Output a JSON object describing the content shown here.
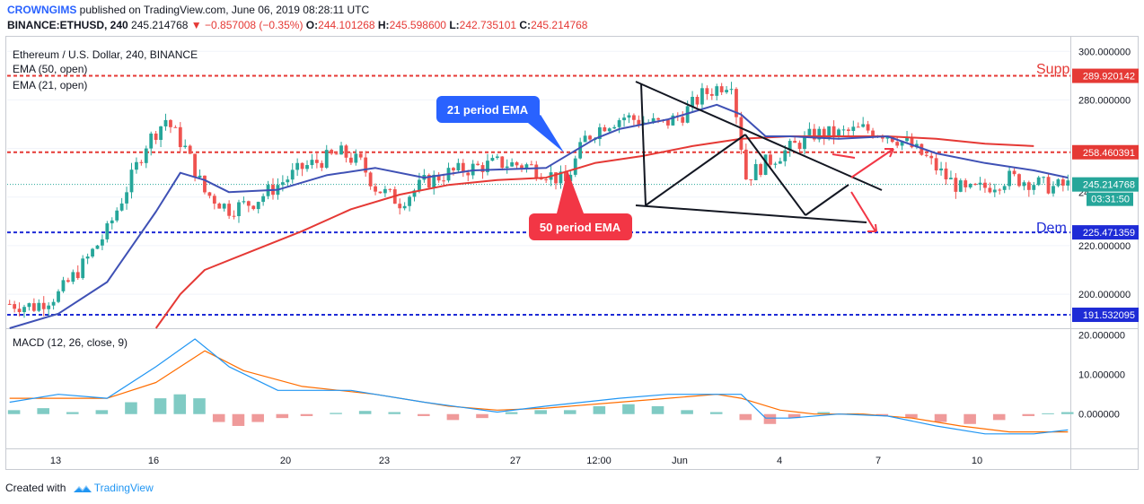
{
  "header": {
    "publisher": "CROWNGIMS",
    "published_text": "published on TradingView.com, June 06, 2019 08:28:11 UTC",
    "symbol": "BINANCE:ETHUSD, 240",
    "last_price": "245.214768",
    "change": "−0.857008 (−0.35%)",
    "open_label": "O:",
    "open": "244.101268",
    "high_label": "H:",
    "high": "245.598600",
    "low_label": "L:",
    "low": "242.735101",
    "close_label": "C:",
    "close": "245.214768"
  },
  "legend": {
    "title": "Ethereum / U.S. Dollar, 240, BINANCE",
    "ema50": "EMA (50, open)",
    "ema21": "EMA (21, open)",
    "macd": "MACD (12, 26, close, 9)"
  },
  "annotations": {
    "ema21_callout": "21 period EMA",
    "ema50_callout": "50 period EMA",
    "supply": "Supp",
    "demand": "Dem"
  },
  "price_axis": {
    "ticks": [
      "300.000000",
      "280.000000",
      "220.000000",
      "200.000000"
    ],
    "partial_tick": "24",
    "level_labels": [
      "289.920142",
      "258.460391",
      "225.471359",
      "191.532095"
    ],
    "current_price": "245.214768",
    "countdown": "03:31:50"
  },
  "macd_axis": {
    "ticks": [
      "20.000000",
      "10.000000",
      "0.000000"
    ]
  },
  "time_axis": {
    "ticks": [
      "13",
      "16",
      "20",
      "23",
      "27",
      "12:00",
      "Jun",
      "4",
      "7",
      "10"
    ]
  },
  "colors": {
    "up": "#26a69a",
    "down": "#ef5350",
    "ema21": "#3f51b5",
    "ema50": "#e53935",
    "macd_line": "#2196f3",
    "signal_line": "#ff6d00",
    "supply_line": "#e53935",
    "demand_line": "#1e2bd6",
    "callout_blue": "#2962ff",
    "callout_red": "#f23645"
  },
  "footer": {
    "created_with": "Created with",
    "brand": "TradingView"
  },
  "chart_data": {
    "type": "candlestick",
    "title": "Ethereum / U.S. Dollar, 240, BINANCE",
    "x": [
      "13",
      "16",
      "20",
      "23",
      "27",
      "12:00",
      "Jun",
      "4"
    ],
    "ylim": [
      186,
      306
    ],
    "horizontal_levels": [
      {
        "value": 289.920142,
        "style": "dashed",
        "color": "#e53935"
      },
      {
        "value": 258.460391,
        "style": "dashed",
        "color": "#e53935"
      },
      {
        "value": 225.471359,
        "style": "dashed",
        "color": "#1e2bd6"
      },
      {
        "value": 191.532095,
        "style": "dashed",
        "color": "#1e2bd6"
      }
    ],
    "close_path": [
      [
        0,
        196
      ],
      [
        5,
        195
      ],
      [
        10,
        200
      ],
      [
        15,
        212
      ],
      [
        20,
        226
      ],
      [
        25,
        248
      ],
      [
        28,
        262
      ],
      [
        32,
        272
      ],
      [
        36,
        260
      ],
      [
        40,
        242
      ],
      [
        45,
        235
      ],
      [
        50,
        238
      ],
      [
        55,
        245
      ],
      [
        60,
        252
      ],
      [
        65,
        256
      ],
      [
        68,
        258
      ],
      [
        72,
        254
      ],
      [
        75,
        244
      ],
      [
        80,
        238
      ],
      [
        85,
        246
      ],
      [
        90,
        250
      ],
      [
        95,
        252
      ],
      [
        100,
        254
      ],
      [
        106,
        253
      ],
      [
        110,
        250
      ],
      [
        114,
        246
      ],
      [
        118,
        264
      ],
      [
        122,
        270
      ],
      [
        126,
        273
      ],
      [
        130,
        271
      ],
      [
        134,
        270
      ],
      [
        138,
        274
      ],
      [
        142,
        282
      ],
      [
        146,
        286
      ],
      [
        148,
        288
      ],
      [
        151,
        248
      ],
      [
        155,
        254
      ],
      [
        160,
        260
      ],
      [
        165,
        266
      ],
      [
        170,
        266
      ],
      [
        175,
        268
      ],
      [
        180,
        266
      ],
      [
        184,
        262
      ],
      [
        188,
        256
      ],
      [
        192,
        248
      ],
      [
        196,
        242
      ],
      [
        200,
        244
      ],
      [
        205,
        248
      ],
      [
        210,
        246
      ],
      [
        214,
        244
      ],
      [
        217,
        245
      ]
    ],
    "ema21_path": [
      [
        0,
        186
      ],
      [
        10,
        192
      ],
      [
        20,
        205
      ],
      [
        30,
        234
      ],
      [
        35,
        250
      ],
      [
        40,
        247
      ],
      [
        45,
        242
      ],
      [
        55,
        243
      ],
      [
        65,
        249
      ],
      [
        75,
        252
      ],
      [
        85,
        248
      ],
      [
        95,
        251
      ],
      [
        110,
        252
      ],
      [
        120,
        264
      ],
      [
        125,
        268
      ],
      [
        130,
        270
      ],
      [
        135,
        272
      ],
      [
        140,
        275
      ],
      [
        145,
        278
      ],
      [
        150,
        274
      ],
      [
        155,
        265
      ],
      [
        160,
        265
      ],
      [
        170,
        264
      ],
      [
        180,
        265
      ],
      [
        190,
        258
      ],
      [
        200,
        254
      ],
      [
        210,
        251
      ],
      [
        217,
        248
      ]
    ],
    "ema50_path": [
      [
        30,
        186
      ],
      [
        35,
        200
      ],
      [
        40,
        210
      ],
      [
        50,
        218
      ],
      [
        60,
        226
      ],
      [
        70,
        235
      ],
      [
        80,
        241
      ],
      [
        90,
        245
      ],
      [
        100,
        247
      ],
      [
        110,
        248
      ],
      [
        120,
        254
      ],
      [
        130,
        257
      ],
      [
        140,
        261
      ],
      [
        150,
        264
      ],
      [
        160,
        265
      ],
      [
        170,
        265
      ],
      [
        180,
        265
      ],
      [
        190,
        264
      ],
      [
        200,
        262
      ],
      [
        210,
        261
      ]
    ],
    "macd_series": [
      {
        "name": "MACD",
        "points": [
          [
            0,
            3
          ],
          [
            10,
            5
          ],
          [
            20,
            4
          ],
          [
            30,
            12
          ],
          [
            38,
            19
          ],
          [
            45,
            12
          ],
          [
            55,
            6
          ],
          [
            70,
            6
          ],
          [
            85,
            3
          ],
          [
            100,
            0.5
          ],
          [
            110,
            2
          ],
          [
            125,
            4
          ],
          [
            135,
            5
          ],
          [
            145,
            5
          ],
          [
            150,
            5
          ],
          [
            155,
            -1
          ],
          [
            160,
            -1
          ],
          [
            170,
            0
          ],
          [
            180,
            -0.5
          ],
          [
            190,
            -3
          ],
          [
            200,
            -5
          ],
          [
            210,
            -5
          ],
          [
            217,
            -4
          ]
        ]
      },
      {
        "name": "Signal",
        "points": [
          [
            0,
            4
          ],
          [
            10,
            4
          ],
          [
            20,
            4
          ],
          [
            30,
            8
          ],
          [
            40,
            16
          ],
          [
            48,
            11
          ],
          [
            60,
            7
          ],
          [
            75,
            5
          ],
          [
            90,
            2
          ],
          [
            100,
            1
          ],
          [
            110,
            1.5
          ],
          [
            125,
            3
          ],
          [
            135,
            4
          ],
          [
            145,
            5
          ],
          [
            150,
            4
          ],
          [
            158,
            1
          ],
          [
            165,
            0
          ],
          [
            175,
            0
          ],
          [
            185,
            -1
          ],
          [
            195,
            -3
          ],
          [
            205,
            -4.5
          ],
          [
            217,
            -4.5
          ]
        ]
      }
    ],
    "macd_histogram": [
      [
        0,
        1
      ],
      [
        6,
        1.5
      ],
      [
        12,
        0.5
      ],
      [
        18,
        1
      ],
      [
        24,
        3
      ],
      [
        30,
        4
      ],
      [
        34,
        5
      ],
      [
        38,
        4
      ],
      [
        42,
        -2
      ],
      [
        46,
        -3
      ],
      [
        50,
        -2
      ],
      [
        55,
        -1
      ],
      [
        60,
        -0.5
      ],
      [
        66,
        0.3
      ],
      [
        72,
        0.8
      ],
      [
        78,
        0.5
      ],
      [
        84,
        -0.5
      ],
      [
        90,
        -1.5
      ],
      [
        96,
        -1
      ],
      [
        102,
        0.5
      ],
      [
        108,
        1
      ],
      [
        114,
        1
      ],
      [
        120,
        2
      ],
      [
        126,
        2.5
      ],
      [
        132,
        2
      ],
      [
        138,
        1
      ],
      [
        144,
        0.5
      ],
      [
        150,
        -1.5
      ],
      [
        155,
        -2.5
      ],
      [
        160,
        -1
      ],
      [
        166,
        0.5
      ],
      [
        172,
        0.2
      ],
      [
        178,
        -0.5
      ],
      [
        184,
        -1
      ],
      [
        190,
        -2
      ],
      [
        196,
        -2.5
      ],
      [
        202,
        -1.5
      ],
      [
        208,
        -0.5
      ],
      [
        212,
        0.2
      ],
      [
        216,
        0.5
      ]
    ]
  }
}
